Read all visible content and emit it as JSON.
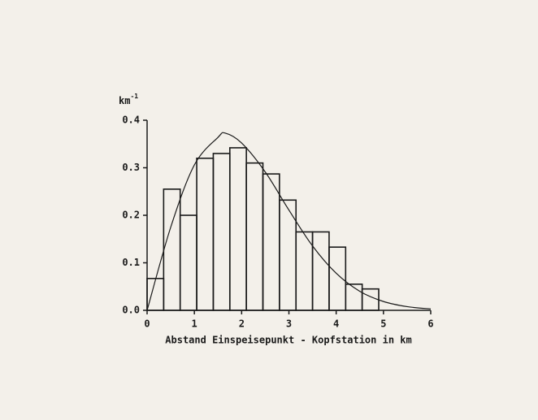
{
  "chart_data": {
    "type": "histogram",
    "xlabel": "Abstand Einspeisepunkt - Kopfstation in km",
    "ylabel": "km",
    "ylabel_exponent": "-1",
    "bins": [
      0,
      0.35,
      0.7,
      1.05,
      1.4,
      1.75,
      2.1,
      2.45,
      2.8,
      3.15,
      3.5,
      3.85,
      4.2,
      4.55,
      4.9
    ],
    "values": [
      0.067,
      0.255,
      0.2,
      0.32,
      0.33,
      0.342,
      0.31,
      0.287,
      0.232,
      0.165,
      0.165,
      0.133,
      0.055,
      0.045
    ],
    "color": "#1a1a1a",
    "curve": {
      "x": [
        0,
        0.5,
        1,
        1.5,
        1.65,
        2,
        2.5,
        3,
        3.5,
        4,
        4.5,
        5,
        5.5,
        6
      ],
      "y": [
        0,
        0.175,
        0.306,
        0.364,
        0.373,
        0.352,
        0.291,
        0.211,
        0.1355,
        0.078,
        0.04,
        0.0186,
        0.0078,
        0.003
      ]
    },
    "xlim": [
      0,
      6
    ],
    "ylim": [
      0,
      0.4
    ],
    "xticks": [
      0,
      1,
      2,
      3,
      4,
      5,
      6
    ],
    "yticks": [
      {
        "value": 0,
        "label": "0.0"
      },
      0.1,
      0.2,
      0.3,
      0.4
    ]
  }
}
